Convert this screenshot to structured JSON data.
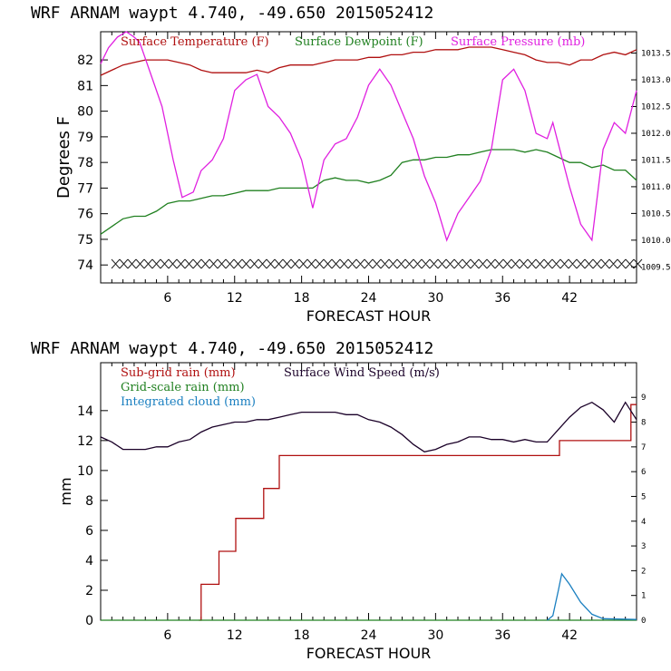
{
  "chart_data": [
    {
      "type": "line",
      "title": "WRF   ARNAM waypt    4.740, -49.650  2015052412",
      "xlabel": "FORECAST HOUR",
      "ylabel": "Degrees F",
      "x_ticks": [
        6,
        12,
        18,
        24,
        30,
        36,
        42
      ],
      "xlim": [
        0,
        48
      ],
      "y_ticks": [
        74,
        75,
        76,
        77,
        78,
        79,
        80,
        81,
        82
      ],
      "ylim": [
        73.3,
        83.1
      ],
      "y2_ticks": [
        {
          "v": 1009.5,
          "label": "1009.5"
        },
        {
          "v": 1010.0,
          "label": "1010.0"
        },
        {
          "v": 1010.5,
          "label": "1010.5"
        },
        {
          "v": 1011.0,
          "label": "1011.0"
        },
        {
          "v": 1011.5,
          "label": "1011.5"
        },
        {
          "v": 1012.0,
          "label": "1012.0"
        },
        {
          "v": 1012.5,
          "label": "1012.5"
        },
        {
          "v": 1013.0,
          "label": "1013.0"
        },
        {
          "v": 1013.5,
          "label": "1013.5"
        }
      ],
      "y2lim": [
        1009.2,
        1013.9
      ],
      "series": [
        {
          "name": "Surface Temperature (F)",
          "color": "#b01010",
          "axis": "left",
          "points": [
            [
              0,
              81.4
            ],
            [
              1,
              81.6
            ],
            [
              2,
              81.8
            ],
            [
              3,
              81.9
            ],
            [
              4,
              82.0
            ],
            [
              5,
              82.0
            ],
            [
              6,
              82.0
            ],
            [
              7,
              81.9
            ],
            [
              8,
              81.8
            ],
            [
              9,
              81.6
            ],
            [
              10,
              81.5
            ],
            [
              11,
              81.5
            ],
            [
              12,
              81.5
            ],
            [
              13,
              81.5
            ],
            [
              14,
              81.6
            ],
            [
              15,
              81.5
            ],
            [
              16,
              81.7
            ],
            [
              17,
              81.8
            ],
            [
              18,
              81.8
            ],
            [
              19,
              81.8
            ],
            [
              20,
              81.9
            ],
            [
              21,
              82.0
            ],
            [
              22,
              82.0
            ],
            [
              23,
              82.0
            ],
            [
              24,
              82.1
            ],
            [
              25,
              82.1
            ],
            [
              26,
              82.2
            ],
            [
              27,
              82.2
            ],
            [
              28,
              82.3
            ],
            [
              29,
              82.3
            ],
            [
              30,
              82.4
            ],
            [
              31,
              82.4
            ],
            [
              32,
              82.4
            ],
            [
              33,
              82.5
            ],
            [
              34,
              82.5
            ],
            [
              35,
              82.5
            ],
            [
              36,
              82.4
            ],
            [
              37,
              82.3
            ],
            [
              38,
              82.2
            ],
            [
              39,
              82.0
            ],
            [
              40,
              81.9
            ],
            [
              41,
              81.9
            ],
            [
              42,
              81.8
            ],
            [
              43,
              82.0
            ],
            [
              44,
              82.0
            ],
            [
              45,
              82.2
            ],
            [
              46,
              82.3
            ],
            [
              47,
              82.2
            ],
            [
              48,
              82.4
            ]
          ]
        },
        {
          "name": "Surface Dewpoint (F)",
          "color": "#208020",
          "axis": "left",
          "points": [
            [
              0,
              75.2
            ],
            [
              1,
              75.5
            ],
            [
              2,
              75.8
            ],
            [
              3,
              75.9
            ],
            [
              4,
              75.9
            ],
            [
              5,
              76.1
            ],
            [
              6,
              76.4
            ],
            [
              7,
              76.5
            ],
            [
              8,
              76.5
            ],
            [
              9,
              76.6
            ],
            [
              10,
              76.7
            ],
            [
              11,
              76.7
            ],
            [
              12,
              76.8
            ],
            [
              13,
              76.9
            ],
            [
              14,
              76.9
            ],
            [
              15,
              76.9
            ],
            [
              16,
              77.0
            ],
            [
              17,
              77.0
            ],
            [
              18,
              77.0
            ],
            [
              19,
              77.0
            ],
            [
              20,
              77.3
            ],
            [
              21,
              77.4
            ],
            [
              22,
              77.3
            ],
            [
              23,
              77.3
            ],
            [
              24,
              77.2
            ],
            [
              25,
              77.3
            ],
            [
              26,
              77.5
            ],
            [
              27,
              78.0
            ],
            [
              28,
              78.1
            ],
            [
              29,
              78.1
            ],
            [
              30,
              78.2
            ],
            [
              31,
              78.2
            ],
            [
              32,
              78.3
            ],
            [
              33,
              78.3
            ],
            [
              34,
              78.4
            ],
            [
              35,
              78.5
            ],
            [
              36,
              78.5
            ],
            [
              37,
              78.5
            ],
            [
              38,
              78.4
            ],
            [
              39,
              78.5
            ],
            [
              40,
              78.4
            ],
            [
              41,
              78.2
            ],
            [
              42,
              78.0
            ],
            [
              43,
              78.0
            ],
            [
              44,
              77.8
            ],
            [
              45,
              77.9
            ],
            [
              46,
              77.7
            ],
            [
              47,
              77.7
            ],
            [
              48,
              77.3
            ]
          ]
        },
        {
          "name": "Surface Pressure (mb)",
          "color": "#e020e0",
          "axis": "right",
          "points": [
            [
              0,
              1013.3
            ],
            [
              0.7,
              1013.6
            ],
            [
              1.5,
              1013.8
            ],
            [
              2.3,
              1013.9
            ],
            [
              3,
              1013.8
            ],
            [
              3.5,
              1013.7
            ],
            [
              4.5,
              1013.1
            ],
            [
              5.5,
              1012.5
            ],
            [
              6.5,
              1011.5
            ],
            [
              7.3,
              1010.8
            ],
            [
              8.3,
              1010.9
            ],
            [
              9,
              1011.3
            ],
            [
              10,
              1011.5
            ],
            [
              11,
              1011.9
            ],
            [
              12,
              1012.8
            ],
            [
              13,
              1013.0
            ],
            [
              14,
              1013.1
            ],
            [
              15,
              1012.5
            ],
            [
              16,
              1012.3
            ],
            [
              17,
              1012.0
            ],
            [
              18,
              1011.5
            ],
            [
              19,
              1010.6
            ],
            [
              20,
              1011.5
            ],
            [
              21,
              1011.8
            ],
            [
              22,
              1011.9
            ],
            [
              23,
              1012.3
            ],
            [
              24,
              1012.9
            ],
            [
              25,
              1013.2
            ],
            [
              26,
              1012.9
            ],
            [
              27,
              1012.4
            ],
            [
              28,
              1011.9
            ],
            [
              29,
              1011.2
            ],
            [
              30,
              1010.7
            ],
            [
              31,
              1010.0
            ],
            [
              32,
              1010.5
            ],
            [
              33,
              1010.8
            ],
            [
              34,
              1011.1
            ],
            [
              35,
              1011.7
            ],
            [
              36,
              1013.0
            ],
            [
              37,
              1013.2
            ],
            [
              38,
              1012.8
            ],
            [
              39,
              1012.0
            ],
            [
              40,
              1011.9
            ],
            [
              40.5,
              1012.2
            ],
            [
              41,
              1011.8
            ],
            [
              42,
              1011.0
            ],
            [
              43,
              1010.3
            ],
            [
              44,
              1010.0
            ],
            [
              45,
              1011.7
            ],
            [
              46,
              1012.2
            ],
            [
              47,
              1012.0
            ],
            [
              48,
              1012.8
            ]
          ]
        }
      ]
    },
    {
      "type": "line",
      "title": "WRF   ARNAM waypt    4.740, -49.650  2015052412",
      "xlabel": "FORECAST HOUR",
      "ylabel": "mm",
      "x_ticks": [
        6,
        12,
        18,
        24,
        30,
        36,
        42
      ],
      "xlim": [
        0,
        48
      ],
      "y_ticks": [
        0,
        2,
        4,
        6,
        8,
        10,
        12,
        14
      ],
      "ylim": [
        0,
        17.2
      ],
      "y2_ticks": [
        0,
        1,
        2,
        3,
        4,
        5,
        6,
        7,
        8,
        9
      ],
      "y2lim": [
        0,
        10.4
      ],
      "series": [
        {
          "name": "Sub-grid rain (mm)",
          "color": "#b01010",
          "axis": "left",
          "step": true,
          "points": [
            [
              8.8,
              0
            ],
            [
              9,
              2.4
            ],
            [
              10.5,
              2.4
            ],
            [
              10.6,
              4.6
            ],
            [
              12,
              4.6
            ],
            [
              12.1,
              6.8
            ],
            [
              14.5,
              6.8
            ],
            [
              14.6,
              8.8
            ],
            [
              15.9,
              8.8
            ],
            [
              16,
              11.0
            ],
            [
              41,
              11.0
            ],
            [
              41.1,
              12.0
            ],
            [
              47.4,
              12.0
            ],
            [
              47.5,
              14.4
            ],
            [
              48,
              14.4
            ]
          ]
        },
        {
          "name": "Grid-scale rain (mm)",
          "color": "#208020",
          "axis": "left",
          "points": [
            [
              0,
              0
            ],
            [
              48,
              0
            ]
          ]
        },
        {
          "name": "Integrated cloud (mm)",
          "color": "#1a7fc0",
          "axis": "left",
          "points": [
            [
              40,
              0
            ],
            [
              40.5,
              0.3
            ],
            [
              41,
              2.0
            ],
            [
              41.3,
              3.1
            ],
            [
              42,
              2.4
            ],
            [
              43,
              1.2
            ],
            [
              44,
              0.4
            ],
            [
              45,
              0.1
            ],
            [
              48,
              0.05
            ]
          ]
        },
        {
          "name": "Surface Wind Speed (m/s)",
          "color": "#1a0028",
          "axis": "right",
          "points": [
            [
              0,
              7.4
            ],
            [
              1,
              7.2
            ],
            [
              2,
              6.9
            ],
            [
              3,
              6.9
            ],
            [
              4,
              6.9
            ],
            [
              5,
              7.0
            ],
            [
              6,
              7.0
            ],
            [
              7,
              7.2
            ],
            [
              8,
              7.3
            ],
            [
              9,
              7.6
            ],
            [
              10,
              7.8
            ],
            [
              11,
              7.9
            ],
            [
              12,
              8.0
            ],
            [
              13,
              8.0
            ],
            [
              14,
              8.1
            ],
            [
              15,
              8.1
            ],
            [
              16,
              8.2
            ],
            [
              17,
              8.3
            ],
            [
              18,
              8.4
            ],
            [
              19,
              8.4
            ],
            [
              20,
              8.4
            ],
            [
              21,
              8.4
            ],
            [
              22,
              8.3
            ],
            [
              23,
              8.3
            ],
            [
              24,
              8.1
            ],
            [
              25,
              8.0
            ],
            [
              26,
              7.8
            ],
            [
              27,
              7.5
            ],
            [
              28,
              7.1
            ],
            [
              29,
              6.8
            ],
            [
              30,
              6.9
            ],
            [
              31,
              7.1
            ],
            [
              32,
              7.2
            ],
            [
              33,
              7.4
            ],
            [
              34,
              7.4
            ],
            [
              35,
              7.3
            ],
            [
              36,
              7.3
            ],
            [
              37,
              7.2
            ],
            [
              38,
              7.3
            ],
            [
              39,
              7.2
            ],
            [
              40,
              7.2
            ],
            [
              41,
              7.7
            ],
            [
              42,
              8.2
            ],
            [
              43,
              8.6
            ],
            [
              44,
              8.8
            ],
            [
              45,
              8.5
            ],
            [
              46,
              8.0
            ],
            [
              47,
              8.8
            ],
            [
              48,
              8.1
            ]
          ]
        }
      ]
    }
  ]
}
